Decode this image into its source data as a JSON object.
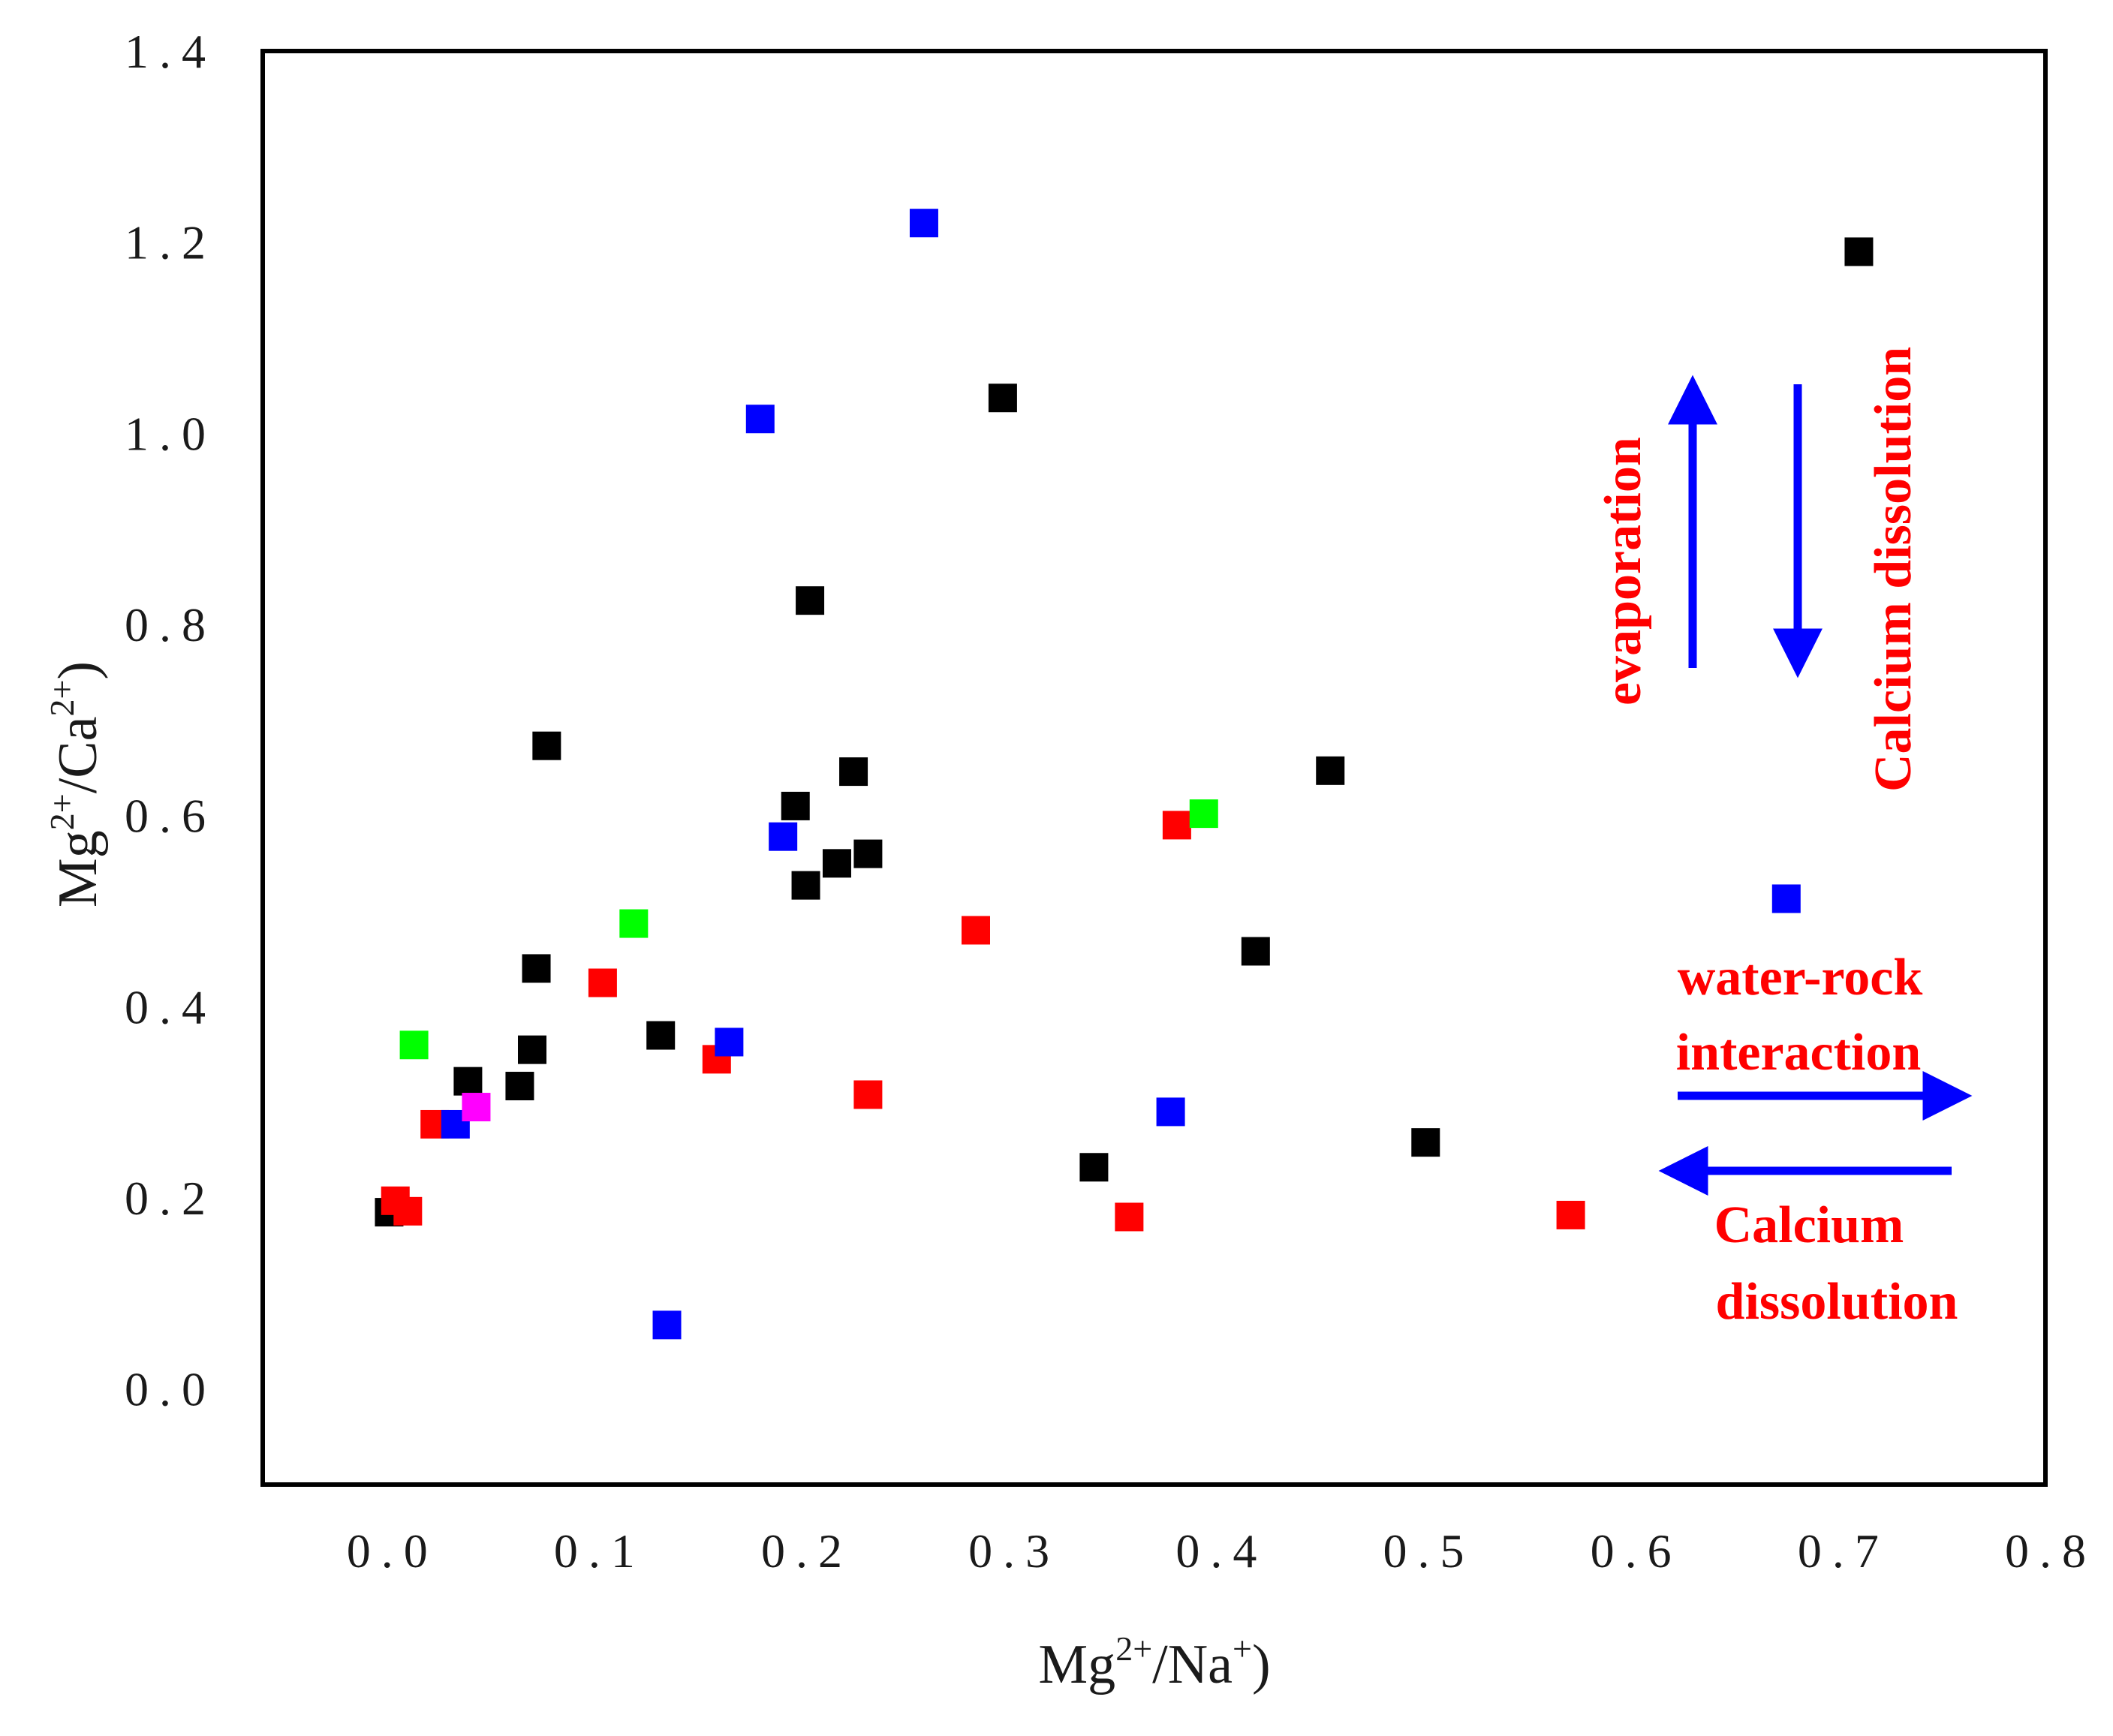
{
  "chart_data": {
    "type": "scatter",
    "title": "",
    "xlabel": {
      "base1": "Mg",
      "sup1": "2+",
      "mid": "/Na",
      "sup2": "+",
      "end": ")"
    },
    "ylabel": {
      "base1": "Mg",
      "sup1": "2+",
      "mid": "/Ca",
      "sup2": "2+",
      "end": ")"
    },
    "xlim": [
      -0.06,
      0.8
    ],
    "ylim": [
      -0.1,
      1.4
    ],
    "x_ticks": [
      "0.0",
      "0.1",
      "0.2",
      "0.3",
      "0.4",
      "0.5",
      "0.6",
      "0.7",
      "0.8"
    ],
    "y_ticks": [
      "0.0",
      "0.2",
      "0.4",
      "0.6",
      "0.8",
      "1.0",
      "1.2",
      "1.4"
    ],
    "grid": false,
    "marker": "square",
    "series": [
      {
        "name": "black",
        "color": "#000000",
        "points": [
          [
            0.001,
            0.185
          ],
          [
            0.039,
            0.322
          ],
          [
            0.064,
            0.317
          ],
          [
            0.07,
            0.355
          ],
          [
            0.072,
            0.44
          ],
          [
            0.077,
            0.673
          ],
          [
            0.132,
            0.37
          ],
          [
            0.197,
            0.61
          ],
          [
            0.202,
            0.527
          ],
          [
            0.204,
            0.825
          ],
          [
            0.217,
            0.55
          ],
          [
            0.225,
            0.646
          ],
          [
            0.232,
            0.56
          ],
          [
            0.297,
            1.037
          ],
          [
            0.341,
            0.232
          ],
          [
            0.419,
            0.458
          ],
          [
            0.455,
            0.647
          ],
          [
            0.501,
            0.258
          ],
          [
            0.71,
            1.19
          ]
        ]
      },
      {
        "name": "red",
        "color": "#ff0000",
        "points": [
          [
            0.004,
            0.197
          ],
          [
            0.01,
            0.186
          ],
          [
            0.023,
            0.277
          ],
          [
            0.104,
            0.425
          ],
          [
            0.159,
            0.345
          ],
          [
            0.232,
            0.308
          ],
          [
            0.284,
            0.48
          ],
          [
            0.358,
            0.18
          ],
          [
            0.381,
            0.59
          ],
          [
            0.571,
            0.182
          ]
        ]
      },
      {
        "name": "blue",
        "color": "#0000ff",
        "points": [
          [
            0.033,
            0.277
          ],
          [
            0.135,
            0.067
          ],
          [
            0.165,
            0.363
          ],
          [
            0.18,
            1.015
          ],
          [
            0.191,
            0.578
          ],
          [
            0.259,
            1.22
          ],
          [
            0.378,
            0.29
          ],
          [
            0.675,
            0.513
          ]
        ]
      },
      {
        "name": "green",
        "color": "#00ff00",
        "points": [
          [
            0.013,
            0.36
          ],
          [
            0.119,
            0.487
          ],
          [
            0.394,
            0.602
          ]
        ]
      },
      {
        "name": "magenta",
        "color": "#ff00ff",
        "points": [
          [
            0.043,
            0.295
          ]
        ]
      }
    ],
    "annotations": [
      {
        "text": "evaporation",
        "color": "#ff0000",
        "orientation": "vertical"
      },
      {
        "text": "Calcium dissolution",
        "color": "#ff0000",
        "orientation": "vertical"
      },
      {
        "text": "water-rock",
        "color": "#ff0000",
        "orientation": "horizontal"
      },
      {
        "text": "interaction",
        "color": "#ff0000",
        "orientation": "horizontal"
      },
      {
        "text": "Calcium",
        "color": "#ff0000",
        "orientation": "horizontal"
      },
      {
        "text": "dissolution",
        "color": "#ff0000",
        "orientation": "horizontal"
      }
    ],
    "arrows": [
      {
        "name": "evaporation-arrow",
        "direction": "up",
        "color": "#0000ff"
      },
      {
        "name": "calcium-dissolution-arrow",
        "direction": "down",
        "color": "#0000ff"
      },
      {
        "name": "water-rock-arrow",
        "direction": "right",
        "color": "#0000ff"
      },
      {
        "name": "calcium-dissolution-left-arrow",
        "direction": "left",
        "color": "#0000ff"
      }
    ]
  }
}
